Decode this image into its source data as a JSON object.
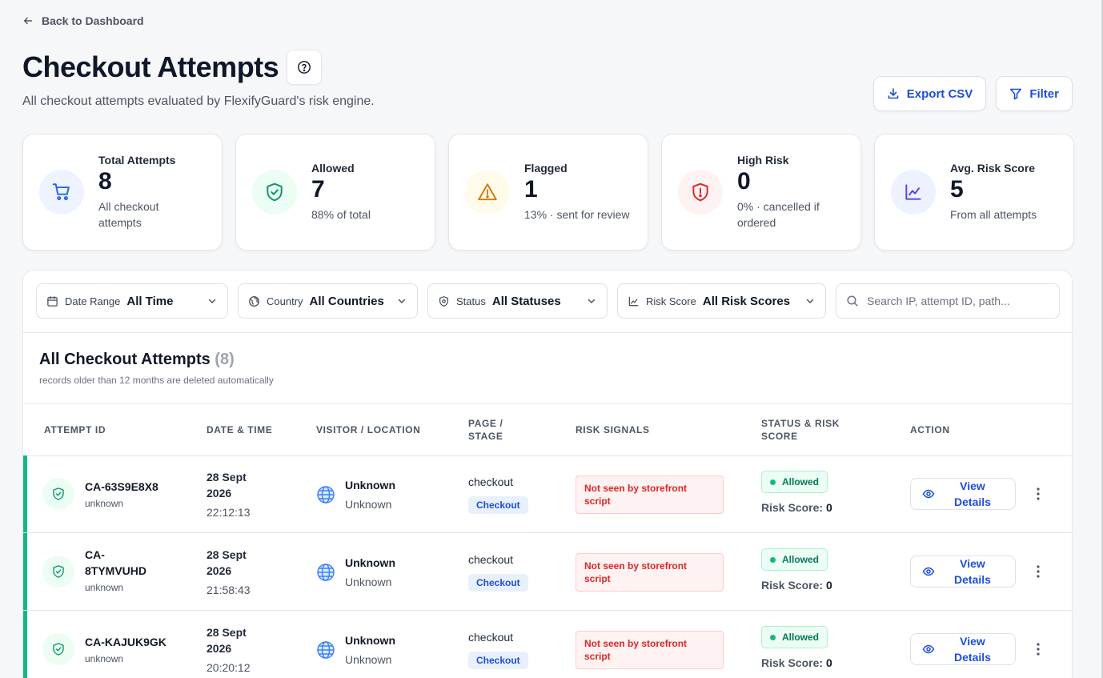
{
  "nav": {
    "back_label": "Back to Dashboard"
  },
  "header": {
    "title": "Checkout Attempts",
    "subtitle": "All checkout attempts evaluated by FlexifyGuard's risk engine.",
    "export_label": "Export CSV",
    "filter_label": "Filter"
  },
  "stats": [
    {
      "label": "Total Attempts",
      "value": "8",
      "sub": "All checkout attempts",
      "icon": "cart-icon",
      "color": "#2563eb",
      "bg": "#eef4ff"
    },
    {
      "label": "Allowed",
      "value": "7",
      "sub": "88% of total",
      "icon": "shield-check-icon",
      "color": "#059669",
      "bg": "#ecfdf3"
    },
    {
      "label": "Flagged",
      "value": "1",
      "sub": "13% · sent for review",
      "icon": "warning-icon",
      "color": "#d97706",
      "bg": "#fffbeb"
    },
    {
      "label": "High Risk",
      "value": "0",
      "sub": "0% · cancelled if ordered",
      "icon": "shield-alert-icon",
      "color": "#dc2626",
      "bg": "#fef2f2"
    },
    {
      "label": "Avg. Risk Score",
      "value": "5",
      "sub": "From all attempts",
      "icon": "chart-line-icon",
      "color": "#4f46e5",
      "bg": "#eef2ff"
    }
  ],
  "filters": {
    "date": {
      "label": "Date Range",
      "value": "All Time"
    },
    "country": {
      "label": "Country",
      "value": "All Countries"
    },
    "status": {
      "label": "Status",
      "value": "All Statuses"
    },
    "risk": {
      "label": "Risk Score",
      "value": "All Risk Scores"
    },
    "search_placeholder": "Search IP, attempt ID, path..."
  },
  "table": {
    "title": "All Checkout Attempts",
    "count": "(8)",
    "note": "records older than 12 months are deleted automatically",
    "columns": [
      "Attempt ID",
      "Date & Time",
      "Visitor / Location",
      "Page / Stage",
      "Risk Signals",
      "Status & Risk Score",
      "Action"
    ],
    "rows": [
      {
        "id": "CA-63S9E8X8",
        "id_sub": "unknown",
        "date": "28 Sept 2026",
        "time": "22:12:13",
        "visitor": "Unknown",
        "location": "Unknown",
        "page": "checkout",
        "stage": "Checkout",
        "risk_signal": "Not seen by storefront script",
        "status": "Allowed",
        "risk_label": "Risk Score:",
        "risk_score": "0",
        "action": "View Details"
      },
      {
        "id": "CA-8TYMVUHD",
        "id_sub": "unknown",
        "date": "28 Sept 2026",
        "time": "21:58:43",
        "visitor": "Unknown",
        "location": "Unknown",
        "page": "checkout",
        "stage": "Checkout",
        "risk_signal": "Not seen by storefront script",
        "status": "Allowed",
        "risk_label": "Risk Score:",
        "risk_score": "0",
        "action": "View Details"
      },
      {
        "id": "CA-KAJUK9GK",
        "id_sub": "unknown",
        "date": "28 Sept 2026",
        "time": "20:20:12",
        "visitor": "Unknown",
        "location": "Unknown",
        "page": "checkout",
        "stage": "Checkout",
        "risk_signal": "Not seen by storefront script",
        "status": "Allowed",
        "risk_label": "Risk Score:",
        "risk_score": "0",
        "action": "View Details"
      }
    ]
  }
}
